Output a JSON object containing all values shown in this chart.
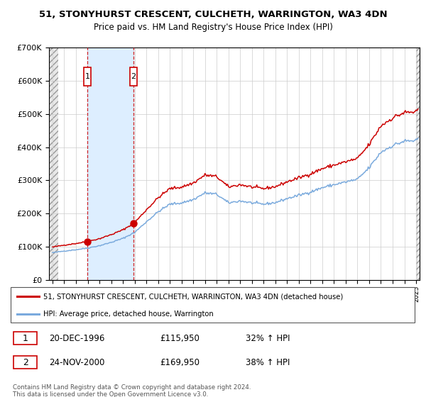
{
  "title": "51, STONYHURST CRESCENT, CULCHETH, WARRINGTON, WA3 4DN",
  "subtitle": "Price paid vs. HM Land Registry's House Price Index (HPI)",
  "legend_line1": "51, STONYHURST CRESCENT, CULCHETH, WARRINGTON, WA3 4DN (detached house)",
  "legend_line2": "HPI: Average price, detached house, Warrington",
  "purchase1_date": "20-DEC-1996",
  "purchase1_price": 115950,
  "purchase1_hpi": "32% ↑ HPI",
  "purchase1_year": 1996.97,
  "purchase2_date": "24-NOV-2000",
  "purchase2_price": 169950,
  "purchase2_hpi": "38% ↑ HPI",
  "purchase2_year": 2000.9,
  "year_start": 1994,
  "year_end": 2025,
  "ylim_max": 700000,
  "hpi_color": "#7aaadd",
  "price_color": "#cc0000",
  "highlight_color": "#ddeeff",
  "footnote": "Contains HM Land Registry data © Crown copyright and database right 2024.\nThis data is licensed under the Open Government Licence v3.0."
}
